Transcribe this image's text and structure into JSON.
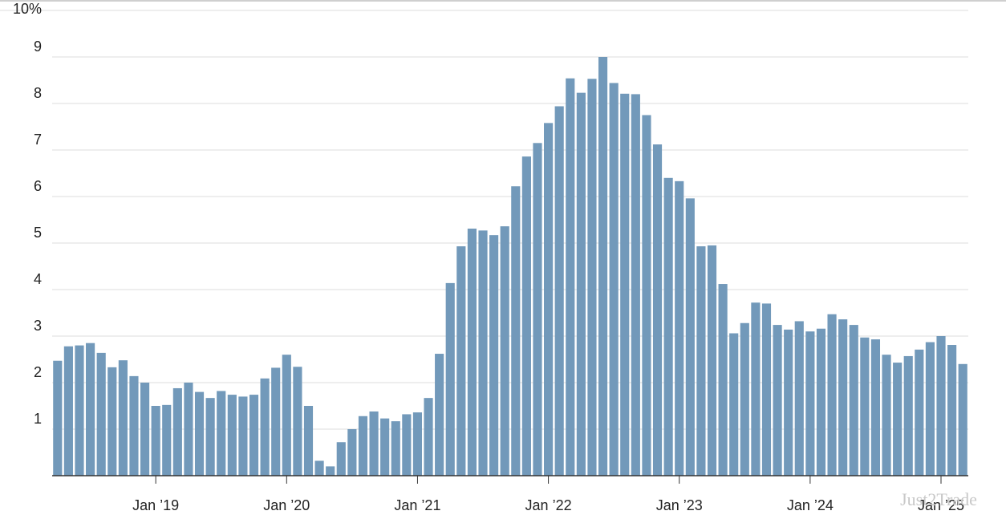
{
  "chart_data": {
    "type": "bar",
    "categories": [
      null,
      null,
      null,
      null,
      null,
      null,
      null,
      null,
      null,
      "Jan ’19",
      null,
      null,
      null,
      null,
      null,
      null,
      null,
      null,
      null,
      null,
      null,
      "Jan ’20",
      null,
      null,
      null,
      null,
      null,
      null,
      null,
      null,
      null,
      null,
      null,
      "Jan ’21",
      null,
      null,
      null,
      null,
      null,
      null,
      null,
      null,
      null,
      null,
      null,
      "Jan ’22",
      null,
      null,
      null,
      null,
      null,
      null,
      null,
      null,
      null,
      null,
      null,
      "Jan ’23",
      null,
      null,
      null,
      null,
      null,
      null,
      null,
      null,
      null,
      null,
      null,
      "Jan ’24",
      null,
      null,
      null,
      null,
      null,
      null,
      null,
      null,
      null,
      null,
      null,
      "Jan ’25",
      null,
      null
    ],
    "values": [
      2.47,
      2.78,
      2.8,
      2.85,
      2.64,
      2.33,
      2.48,
      2.14,
      2.0,
      1.5,
      1.52,
      1.88,
      2.0,
      1.8,
      1.67,
      1.82,
      1.74,
      1.7,
      1.74,
      2.09,
      2.32,
      2.6,
      2.34,
      1.5,
      0.32,
      0.2,
      0.72,
      1.0,
      1.28,
      1.38,
      1.23,
      1.17,
      1.32,
      1.36,
      1.67,
      2.62,
      4.14,
      4.93,
      5.31,
      5.27,
      5.17,
      5.36,
      6.22,
      6.86,
      7.15,
      7.58,
      7.94,
      8.54,
      8.23,
      8.53,
      9.0,
      8.44,
      8.21,
      8.2,
      7.75,
      7.12,
      6.4,
      6.33,
      5.96,
      4.93,
      4.95,
      4.12,
      3.06,
      3.28,
      3.72,
      3.7,
      3.24,
      3.14,
      3.32,
      3.1,
      3.16,
      3.47,
      3.36,
      3.24,
      2.97,
      2.93,
      2.6,
      2.43,
      2.57,
      2.71,
      2.87,
      3.0,
      2.81,
      2.4
    ],
    "color": "#7299ba",
    "ylim": [
      0,
      10
    ],
    "yticks": [
      1,
      2,
      3,
      4,
      5,
      6,
      7,
      8,
      9,
      {
        "value": 10,
        "label": "10%"
      }
    ],
    "grid": true,
    "watermark": "Just2Trade"
  }
}
